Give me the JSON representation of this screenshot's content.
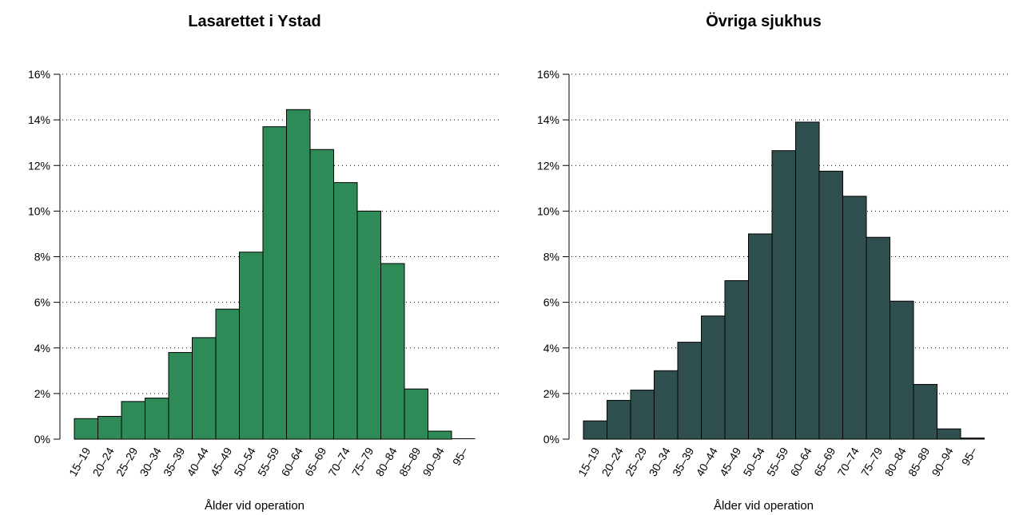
{
  "chart_data": [
    {
      "type": "bar",
      "title": "Lasarettet i Ystad",
      "xlabel": "Ålder vid operation",
      "ylabel": "",
      "ylim": [
        0,
        16
      ],
      "yticks": [
        0,
        2,
        4,
        6,
        8,
        10,
        12,
        14,
        16
      ],
      "ytick_labels": [
        "0%",
        "2%",
        "4%",
        "6%",
        "8%",
        "10%",
        "12%",
        "14%",
        "16%"
      ],
      "grid": "horizontal dotted",
      "bar_color": "#2e8b57",
      "categories": [
        "15–19",
        "20–24",
        "25–29",
        "30–34",
        "35–39",
        "40–44",
        "45–49",
        "50–54",
        "55–59",
        "60–64",
        "65–69",
        "70–74",
        "75–79",
        "80–84",
        "85–89",
        "90–94",
        "95–"
      ],
      "values": [
        0.9,
        1.0,
        1.65,
        1.8,
        3.8,
        4.45,
        5.7,
        8.2,
        13.7,
        14.45,
        12.7,
        11.25,
        10.0,
        7.7,
        2.2,
        0.35,
        0.0
      ]
    },
    {
      "type": "bar",
      "title": "Övriga sjukhus",
      "xlabel": "Ålder vid operation",
      "ylabel": "",
      "ylim": [
        0,
        16
      ],
      "yticks": [
        0,
        2,
        4,
        6,
        8,
        10,
        12,
        14,
        16
      ],
      "ytick_labels": [
        "0%",
        "2%",
        "4%",
        "6%",
        "8%",
        "10%",
        "12%",
        "14%",
        "16%"
      ],
      "grid": "horizontal dotted",
      "bar_color": "#2f4f4f",
      "categories": [
        "15–19",
        "20–24",
        "25–29",
        "30–34",
        "35–39",
        "40–44",
        "45–49",
        "50–54",
        "55–59",
        "60–64",
        "65–69",
        "70–74",
        "75–79",
        "80–84",
        "85–89",
        "90–94",
        "95–"
      ],
      "values": [
        0.8,
        1.7,
        2.15,
        3.0,
        4.25,
        5.4,
        6.95,
        9.0,
        12.65,
        13.9,
        11.75,
        10.65,
        8.85,
        6.05,
        2.4,
        0.45,
        0.05
      ]
    }
  ]
}
